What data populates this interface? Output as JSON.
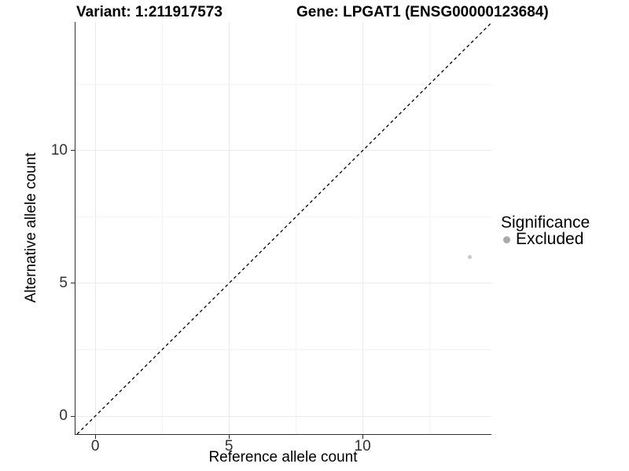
{
  "title": {
    "variant": "Variant: 1:211917573",
    "gene": "Gene: LPGAT1 (ENSG00000123684)"
  },
  "chart_data": {
    "type": "scatter",
    "title": "Variant: 1:211917573    Gene: LPGAT1 (ENSG00000123684)",
    "xlabel": "Reference allele count",
    "ylabel": "Alternative allele count",
    "xlim": [
      -0.74,
      14.82
    ],
    "ylim": [
      -0.68,
      14.85
    ],
    "x_major_ticks": [
      0,
      5,
      10
    ],
    "y_major_ticks": [
      0,
      5,
      10
    ],
    "x_minor_ticks": [
      2.5,
      7.5,
      12.5
    ],
    "y_minor_ticks": [
      2.5,
      7.5,
      12.5
    ],
    "grid": "on",
    "reference_line": {
      "kind": "identity",
      "equation": "y = x",
      "style": "dashed",
      "color": "#000000"
    },
    "series": [
      {
        "name": "Excluded",
        "marker": "circle",
        "color": "#c8c8c8",
        "points": [
          [
            14,
            6
          ]
        ]
      }
    ],
    "legend": {
      "position": "right",
      "title": "Significance",
      "entries": [
        {
          "label": "Excluded",
          "swatch_color": "#a9a9a9"
        }
      ]
    }
  },
  "styles": {
    "grid_major": "#ebebeb",
    "grid_minor": "#f4f4f4",
    "axis_line": "#2f2f2f",
    "tick_color": "#2f2f2f",
    "point_diameter": 5,
    "legend_dot_diameter": 9
  }
}
